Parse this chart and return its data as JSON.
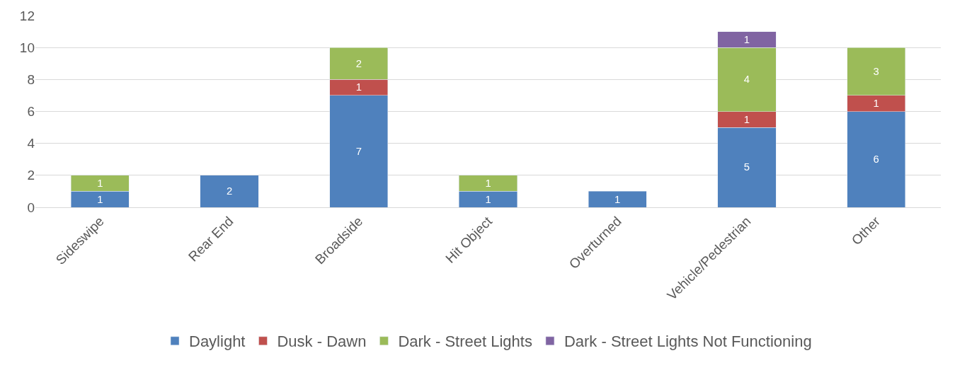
{
  "chart_data": {
    "type": "bar",
    "stacked": true,
    "categories": [
      "Sideswipe",
      "Rear End",
      "Broadside",
      "Hit Object",
      "Overturned",
      "Vehicle/Pedestrian",
      "Other"
    ],
    "series": [
      {
        "name": "Daylight",
        "color": "#4f81bd",
        "values": [
          1,
          2,
          7,
          1,
          1,
          5,
          6
        ]
      },
      {
        "name": "Dusk - Dawn",
        "color": "#c0504d",
        "values": [
          null,
          null,
          1,
          null,
          null,
          1,
          1
        ]
      },
      {
        "name": "Dark - Street Lights",
        "color": "#9bbb59",
        "values": [
          1,
          null,
          2,
          1,
          null,
          4,
          3
        ]
      },
      {
        "name": "Dark - Street Lights Not Functioning",
        "color": "#8064a2",
        "values": [
          null,
          null,
          null,
          null,
          null,
          1,
          null
        ]
      }
    ],
    "ylim": [
      0,
      12
    ],
    "yticks": [
      0,
      2,
      4,
      6,
      8,
      10,
      12
    ],
    "grid": "y",
    "legend": "bottom",
    "data_labels": true
  }
}
